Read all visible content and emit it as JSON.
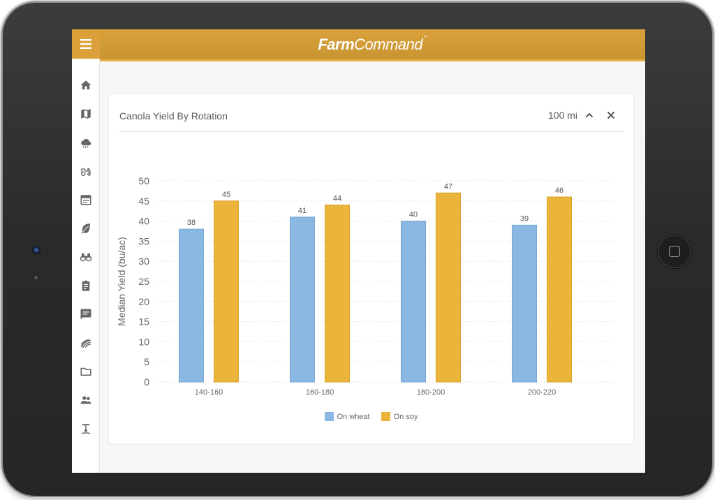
{
  "app": {
    "brand_bold": "Farm",
    "brand_light": "Command",
    "brand_tm": "™",
    "accent_color": "#d9a23c"
  },
  "sidebar": {
    "items": [
      {
        "icon": "home-icon"
      },
      {
        "icon": "map-icon"
      },
      {
        "icon": "weather-icon"
      },
      {
        "icon": "tractor-icon"
      },
      {
        "icon": "calendar-icon"
      },
      {
        "icon": "crop-leaf-icon"
      },
      {
        "icon": "binoculars-icon"
      },
      {
        "icon": "clipboard-icon"
      },
      {
        "icon": "message-icon"
      },
      {
        "icon": "field-icon"
      },
      {
        "icon": "folder-icon"
      },
      {
        "icon": "people-icon"
      },
      {
        "icon": "sprayer-icon"
      }
    ]
  },
  "card": {
    "title": "Canola Yield By Rotation",
    "range": "100 mi"
  },
  "chart_data": {
    "type": "bar",
    "ylabel": "Median Yield (bu/ac)",
    "xlabel": "",
    "ylim": [
      0,
      50
    ],
    "yticks": [
      0,
      5,
      10,
      15,
      20,
      25,
      30,
      35,
      40,
      45,
      50
    ],
    "grid": true,
    "legend_position": "bottom",
    "categories": [
      "140-160",
      "160-180",
      "180-200",
      "200-220"
    ],
    "series": [
      {
        "name": "On wheat",
        "color": "#8bb8e3",
        "values": [
          38,
          41,
          40,
          39
        ],
        "data_labels": [
          "38",
          "41",
          "40",
          "39"
        ]
      },
      {
        "name": "On soy",
        "color": "#ebb43b",
        "values": [
          45,
          44,
          47,
          46
        ],
        "data_labels": [
          "45",
          "44",
          "47",
          "46"
        ]
      }
    ]
  }
}
